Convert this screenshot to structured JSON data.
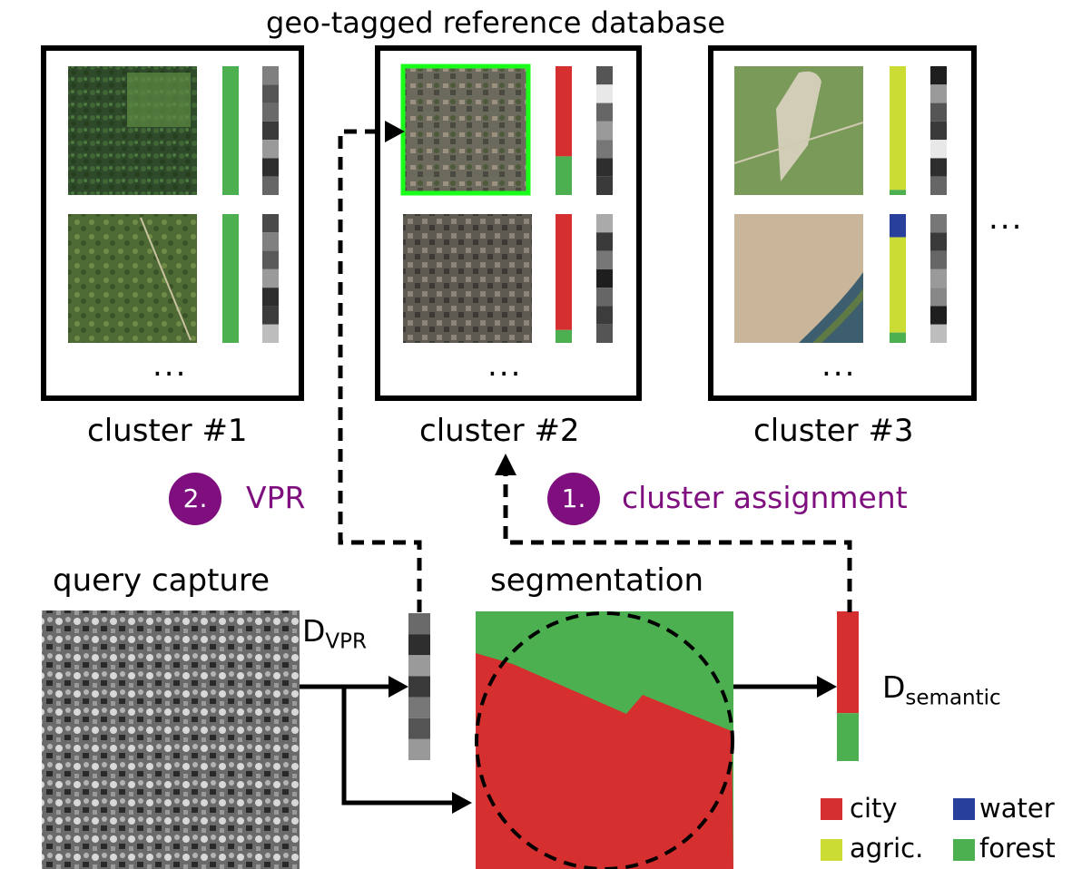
{
  "title": "geo-tagged reference database",
  "clusters": [
    {
      "label": "cluster #1",
      "dots": "...",
      "items": [
        {
          "semantic": [
            {
              "cls": "forest",
              "frac": 1.0
            }
          ],
          "descriptor": [
            "#808080",
            "#555555",
            "#6a6a6a",
            "#3a3a3a",
            "#9a9a9a",
            "#2e2e2e",
            "#666666"
          ]
        },
        {
          "semantic": [
            {
              "cls": "forest",
              "frac": 1.0
            }
          ],
          "descriptor": [
            "#4a4a4a",
            "#808080",
            "#5a5a5a",
            "#9a9a9a",
            "#2e2e2e",
            "#3c3c3c",
            "#bdbdbd"
          ]
        }
      ]
    },
    {
      "label": "cluster #2",
      "dots": "...",
      "items": [
        {
          "semantic": [
            {
              "cls": "city",
              "frac": 0.7
            },
            {
              "cls": "forest",
              "frac": 0.3
            }
          ],
          "descriptor": [
            "#555555",
            "#e8e8e8",
            "#666666",
            "#9a9a9a",
            "#777777",
            "#2e2e2e",
            "#3a3a3a"
          ],
          "highlighted": true
        },
        {
          "semantic": [
            {
              "cls": "city",
              "frac": 0.9
            },
            {
              "cls": "forest",
              "frac": 0.1
            }
          ],
          "descriptor": [
            "#aaaaaa",
            "#3a3a3a",
            "#777777",
            "#1e1e1e",
            "#666666",
            "#3c3c3c",
            "#555555"
          ]
        }
      ]
    },
    {
      "label": "cluster #3",
      "dots": "...",
      "items": [
        {
          "semantic": [
            {
              "cls": "agric",
              "frac": 0.96
            },
            {
              "cls": "forest",
              "frac": 0.04
            }
          ],
          "descriptor": [
            "#1e1e1e",
            "#9a9a9a",
            "#555555",
            "#3a3a3a",
            "#e8e8e8",
            "#2e2e2e",
            "#666666"
          ]
        },
        {
          "semantic": [
            {
              "cls": "water",
              "frac": 0.18
            },
            {
              "cls": "agric",
              "frac": 0.74
            },
            {
              "cls": "forest",
              "frac": 0.08
            }
          ],
          "descriptor": [
            "#777777",
            "#3a3a3a",
            "#666666",
            "#9a9a9a",
            "#888888",
            "#1e1e1e",
            "#bdbdbd"
          ]
        }
      ]
    }
  ],
  "more_dots": "...",
  "steps": [
    {
      "number": "2.",
      "label": "VPR"
    },
    {
      "number": "1.",
      "label": "cluster assignment"
    }
  ],
  "query_label": "query capture",
  "segmentation_label": "segmentation",
  "d_vpr": {
    "main": "D",
    "sub": "VPR",
    "descriptor": [
      "#6a6a6a",
      "#2e2e2e",
      "#9a9a9a",
      "#3a3a3a",
      "#777777",
      "#555555",
      "#999999"
    ]
  },
  "d_semantic": {
    "main": "D",
    "sub": "semantic",
    "semantic": [
      {
        "cls": "city",
        "frac": 0.68
      },
      {
        "cls": "forest",
        "frac": 0.32
      }
    ]
  },
  "legend": [
    {
      "cls": "city",
      "label": "city"
    },
    {
      "cls": "water",
      "label": "water"
    },
    {
      "cls": "agric",
      "label": "agric."
    },
    {
      "cls": "forest",
      "label": "forest"
    }
  ],
  "colors": {
    "city": "#d62f2f",
    "forest": "#4caf50",
    "agric": "#cbdc35",
    "water": "#283f9c",
    "purple": "#7f0f7f",
    "highlight": "#1aff1a"
  }
}
